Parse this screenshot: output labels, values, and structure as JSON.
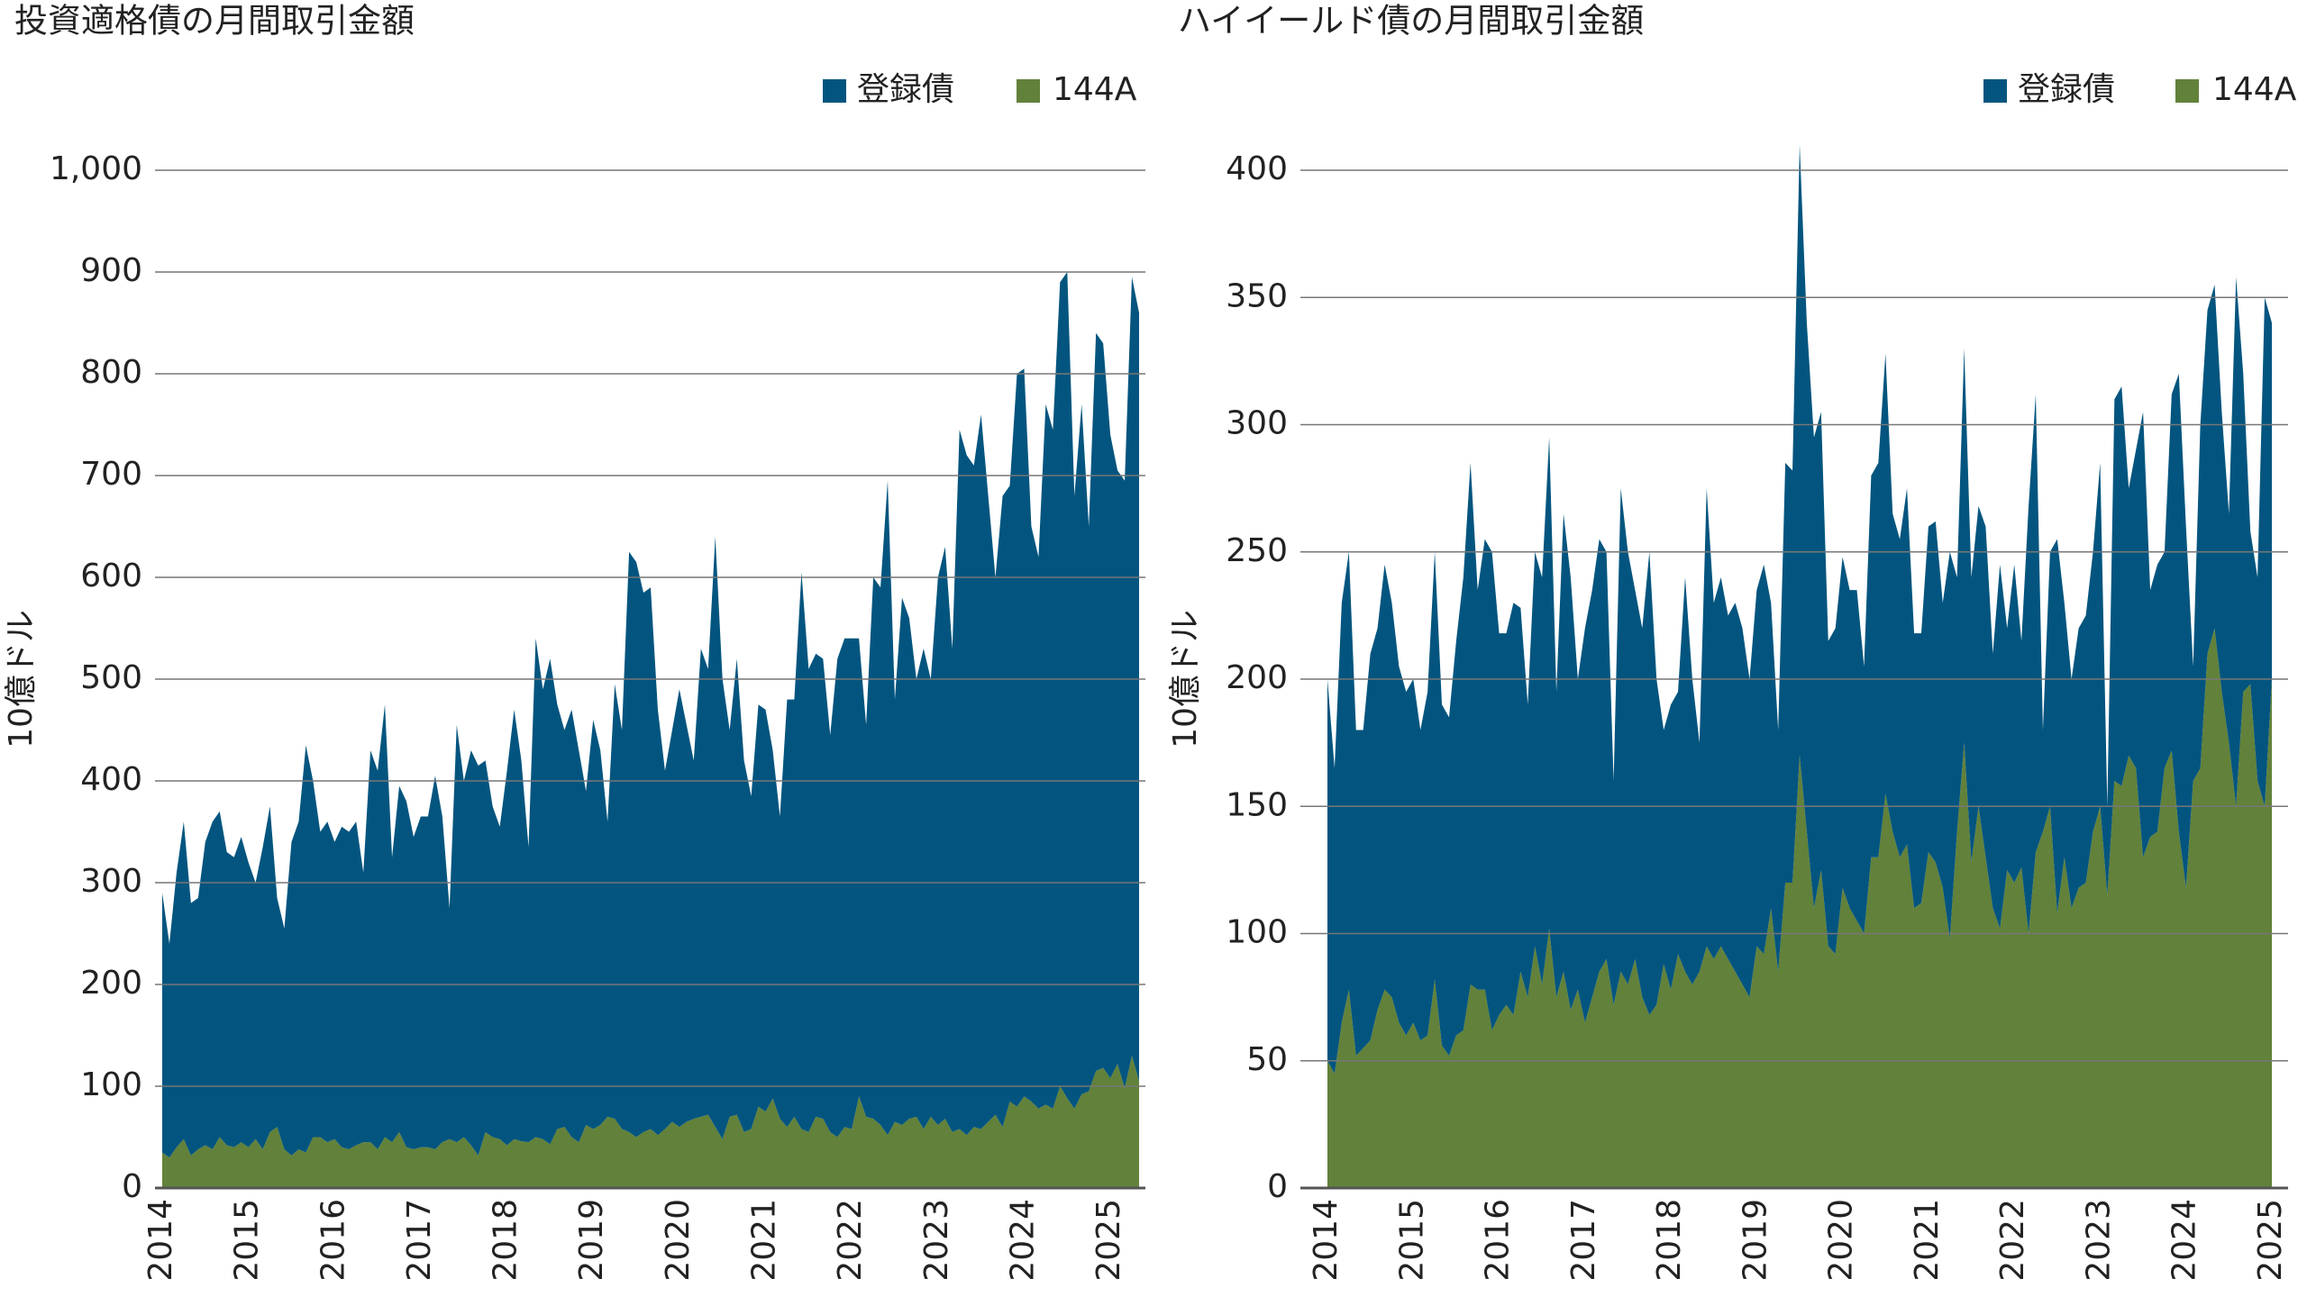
{
  "chart_data": [
    {
      "type": "area",
      "stacked": true,
      "title": "投資適格債の月間取引金額",
      "ylabel": "10億ドル",
      "legend": "top-right",
      "grid": true,
      "categories": [
        "2014",
        null,
        null,
        null,
        null,
        null,
        null,
        null,
        null,
        null,
        null,
        null,
        "2015",
        null,
        null,
        null,
        null,
        null,
        null,
        null,
        null,
        null,
        null,
        null,
        "2016",
        null,
        null,
        null,
        null,
        null,
        null,
        null,
        null,
        null,
        null,
        null,
        "2017",
        null,
        null,
        null,
        null,
        null,
        null,
        null,
        null,
        null,
        null,
        null,
        "2018",
        null,
        null,
        null,
        null,
        null,
        null,
        null,
        null,
        null,
        null,
        null,
        "2019",
        null,
        null,
        null,
        null,
        null,
        null,
        null,
        null,
        null,
        null,
        null,
        "2020",
        null,
        null,
        null,
        null,
        null,
        null,
        null,
        null,
        null,
        null,
        null,
        "2021",
        null,
        null,
        null,
        null,
        null,
        null,
        null,
        null,
        null,
        null,
        null,
        "2022",
        null,
        null,
        null,
        null,
        null,
        null,
        null,
        null,
        null,
        null,
        null,
        "2023",
        null,
        null,
        null,
        null,
        null,
        null,
        null,
        null,
        null,
        null,
        null,
        "2024",
        null,
        null,
        null,
        null,
        null,
        null,
        null,
        null,
        null,
        null,
        null,
        "2025",
        null,
        null,
        null,
        null
      ],
      "ylim": [
        0,
        1000
      ],
      "yticks": [
        0,
        100,
        200,
        300,
        400,
        500,
        600,
        700,
        800,
        900,
        {
          "value": 1000,
          "label": "1,000"
        }
      ],
      "series": [
        {
          "name": "登録債",
          "color": "#03557f",
          "values": [
            255,
            210,
            270,
            312,
            248,
            247,
            298,
            322,
            320,
            288,
            285,
            300,
            280,
            252,
            297,
            320,
            225,
            217,
            308,
            322,
            400,
            350,
            300,
            315,
            292,
            315,
            312,
            318,
            265,
            385,
            372,
            425,
            280,
            340,
            340,
            307,
            325,
            325,
            367,
            320,
            227,
            410,
            350,
            388,
            383,
            365,
            325,
            307,
            368,
            422,
            374,
            290,
            490,
            442,
            477,
            417,
            390,
            420,
            385,
            328,
            402,
            368,
            290,
            427,
            392,
            570,
            565,
            530,
            532,
            418,
            352,
            385,
            430,
            390,
            352,
            460,
            438,
            580,
            452,
            380,
            448,
            365,
            327,
            395,
            395,
            342,
            297,
            420,
            410,
            547,
            455,
            455,
            452,
            390,
            470,
            480,
            482,
            450,
            385,
            532,
            528,
            643,
            415,
            518,
            492,
            430,
            472,
            430,
            538,
            562,
            475,
            687,
            668,
            650,
            702,
            615,
            528,
            620,
            605,
            720,
            715,
            565,
            542,
            688,
            667,
            790,
            812,
            602,
            678,
            555,
            725,
            712,
            632,
            583,
            597,
            765,
            755
          ]
        },
        {
          "name": "144A",
          "color": "#62813a",
          "values": [
            35,
            30,
            40,
            48,
            32,
            38,
            42,
            38,
            50,
            42,
            40,
            45,
            40,
            48,
            38,
            55,
            60,
            38,
            32,
            38,
            35,
            50,
            50,
            45,
            48,
            40,
            38,
            42,
            45,
            45,
            38,
            50,
            45,
            55,
            40,
            38,
            40,
            40,
            38,
            45,
            48,
            45,
            50,
            42,
            32,
            55,
            50,
            48,
            42,
            48,
            46,
            45,
            50,
            48,
            43,
            58,
            60,
            50,
            45,
            62,
            58,
            62,
            70,
            68,
            58,
            55,
            50,
            55,
            58,
            52,
            58,
            65,
            60,
            65,
            68,
            70,
            72,
            60,
            48,
            70,
            72,
            55,
            58,
            80,
            75,
            88,
            68,
            60,
            70,
            58,
            55,
            70,
            68,
            55,
            50,
            60,
            58,
            90,
            70,
            68,
            62,
            52,
            65,
            62,
            68,
            70,
            58,
            70,
            62,
            68,
            55,
            58,
            52,
            60,
            58,
            65,
            72,
            60,
            85,
            80,
            90,
            85,
            78,
            82,
            78,
            100,
            88,
            78,
            92,
            95,
            115,
            118,
            108,
            122,
            98,
            130,
            105
          ]
        }
      ]
    },
    {
      "type": "area",
      "stacked": true,
      "title": "ハイイールド債の月間取引金額",
      "ylabel": "10億ドル",
      "legend": "top-right",
      "grid": true,
      "categories": [
        "2014",
        null,
        null,
        null,
        null,
        null,
        null,
        null,
        null,
        null,
        null,
        null,
        "2015",
        null,
        null,
        null,
        null,
        null,
        null,
        null,
        null,
        null,
        null,
        null,
        "2016",
        null,
        null,
        null,
        null,
        null,
        null,
        null,
        null,
        null,
        null,
        null,
        "2017",
        null,
        null,
        null,
        null,
        null,
        null,
        null,
        null,
        null,
        null,
        null,
        "2018",
        null,
        null,
        null,
        null,
        null,
        null,
        null,
        null,
        null,
        null,
        null,
        "2019",
        null,
        null,
        null,
        null,
        null,
        null,
        null,
        null,
        null,
        null,
        null,
        "2020",
        null,
        null,
        null,
        null,
        null,
        null,
        null,
        null,
        null,
        null,
        null,
        "2021",
        null,
        null,
        null,
        null,
        null,
        null,
        null,
        null,
        null,
        null,
        null,
        "2022",
        null,
        null,
        null,
        null,
        null,
        null,
        null,
        null,
        null,
        null,
        null,
        "2023",
        null,
        null,
        null,
        null,
        null,
        null,
        null,
        null,
        null,
        null,
        null,
        "2024",
        null,
        null,
        null,
        null,
        null,
        null,
        null,
        null,
        null,
        null,
        null,
        "2025"
      ],
      "ylim": [
        0,
        400
      ],
      "yticks": [
        0,
        50,
        100,
        150,
        200,
        250,
        300,
        350,
        400
      ],
      "series": [
        {
          "name": "登録債",
          "color": "#03557f",
          "values": [
            150,
            120,
            165,
            172,
            128,
            125,
            152,
            150,
            167,
            155,
            140,
            135,
            135,
            122,
            135,
            168,
            134,
            133,
            155,
            178,
            205,
            157,
            177,
            188,
            150,
            146,
            162,
            143,
            115,
            155,
            160,
            193,
            120,
            180,
            170,
            122,
            155,
            160,
            170,
            160,
            88,
            190,
            170,
            145,
            145,
            182,
            128,
            92,
            112,
            103,
            155,
            120,
            90,
            180,
            140,
            145,
            135,
            145,
            140,
            125,
            140,
            153,
            120,
            95,
            165,
            162,
            240,
            200,
            185,
            180,
            120,
            128,
            130,
            125,
            130,
            105,
            150,
            155,
            173,
            125,
            125,
            140,
            108,
            106,
            128,
            134,
            112,
            152,
            100,
            155,
            112,
            118,
            130,
            100,
            143,
            95,
            125,
            89,
            168,
            180,
            40,
            100,
            147,
            100,
            90,
            102,
            105,
            110,
            135,
            35,
            150,
            157,
            105,
            125,
            175,
            97,
            105,
            85,
            140,
            180,
            142,
            45,
            135,
            135,
            135,
            110,
            90,
            208,
            125,
            60,
            80,
            200,
            140
          ]
        },
        {
          "name": "144A",
          "color": "#62813a",
          "values": [
            50,
            45,
            65,
            78,
            52,
            55,
            58,
            70,
            78,
            75,
            65,
            60,
            65,
            58,
            60,
            82,
            56,
            52,
            60,
            62,
            80,
            78,
            78,
            62,
            68,
            72,
            68,
            85,
            75,
            95,
            80,
            102,
            75,
            85,
            70,
            78,
            65,
            75,
            85,
            90,
            72,
            85,
            80,
            90,
            75,
            68,
            72,
            88,
            78,
            92,
            85,
            80,
            85,
            95,
            90,
            95,
            90,
            85,
            80,
            75,
            95,
            92,
            110,
            85,
            120,
            120,
            170,
            140,
            110,
            125,
            95,
            92,
            118,
            110,
            105,
            100,
            130,
            130,
            155,
            140,
            130,
            135,
            110,
            112,
            132,
            128,
            118,
            98,
            140,
            175,
            128,
            150,
            130,
            110,
            102,
            125,
            120,
            126,
            100,
            132,
            140,
            150,
            108,
            130,
            110,
            118,
            120,
            140,
            150,
            115,
            160,
            158,
            170,
            165,
            130,
            138,
            140,
            165,
            172,
            140,
            118,
            160,
            165,
            210,
            220,
            195,
            175,
            150,
            195,
            198,
            160,
            150,
            200
          ]
        }
      ]
    }
  ]
}
